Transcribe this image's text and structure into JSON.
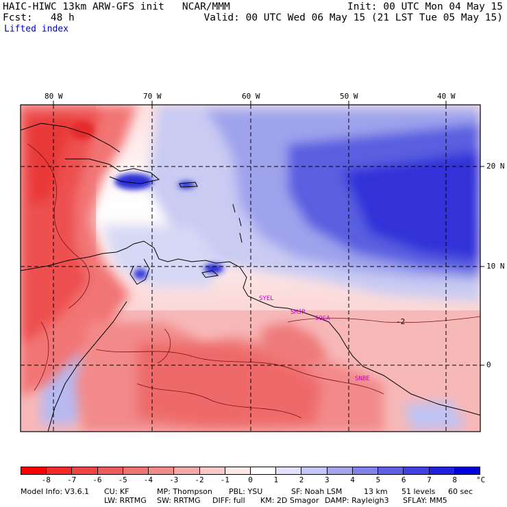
{
  "header": {
    "model_line": "HAIC-HIWC 13km ARW-GFS init   NCAR/MMM",
    "init_line": "Init: 00 UTC Mon 04 May 15",
    "fcst_line": "Fcst:   48 h",
    "valid_line": "Valid: 00 UTC Wed 06 May 15 (21 LST Tue 05 May 15)",
    "field_line": "Lifted index"
  },
  "map": {
    "lon_labels": [
      "80 W",
      "70 W",
      "60 W",
      "50 W",
      "40 W"
    ],
    "lat_labels": [
      "20 N",
      "10 N",
      "0"
    ],
    "contour_label": "-2",
    "stations": [
      "SYEL",
      "SMJP",
      "SOCA",
      "SNBE"
    ],
    "colors": {
      "unstable_dark": "#f01818",
      "unstable_light": "#fbb3b3",
      "neutral": "#ffffff",
      "stable_light": "#c8c8f4",
      "stable_dark": "#2020e6",
      "station": "#cc00cc"
    }
  },
  "colorbar": {
    "labels": [
      "-8",
      "-7",
      "-6",
      "-5",
      "-4",
      "-3",
      "-2",
      "-1",
      "0",
      "1",
      "2",
      "3",
      "4",
      "5",
      "6",
      "7",
      "8"
    ],
    "unit": "°C",
    "colors": [
      "#ff0000",
      "#f42a2a",
      "#ef4545",
      "#ec5c5c",
      "#ee7474",
      "#f18c8c",
      "#f5a8a8",
      "#f9c8c8",
      "#fde7e7",
      "#ffffff",
      "#e2e2fb",
      "#c6c6f5",
      "#a5a5ef",
      "#8282ea",
      "#6060e6",
      "#4040e3",
      "#2020e0",
      "#0000dd"
    ]
  },
  "footer": {
    "line1": [
      "Model Info: V3.6.1",
      "CU: KF",
      "MP: Thompson",
      "PBL: YSU",
      "SF: Noah LSM",
      "13 km",
      "51 levels",
      "60 sec"
    ],
    "line2": [
      "LW: RRTMG",
      "SW: RRTMG",
      "DIFF: full",
      "KM: 2D Smagor",
      "DAMP: Rayleigh3",
      "SFLAY: MM5"
    ]
  }
}
